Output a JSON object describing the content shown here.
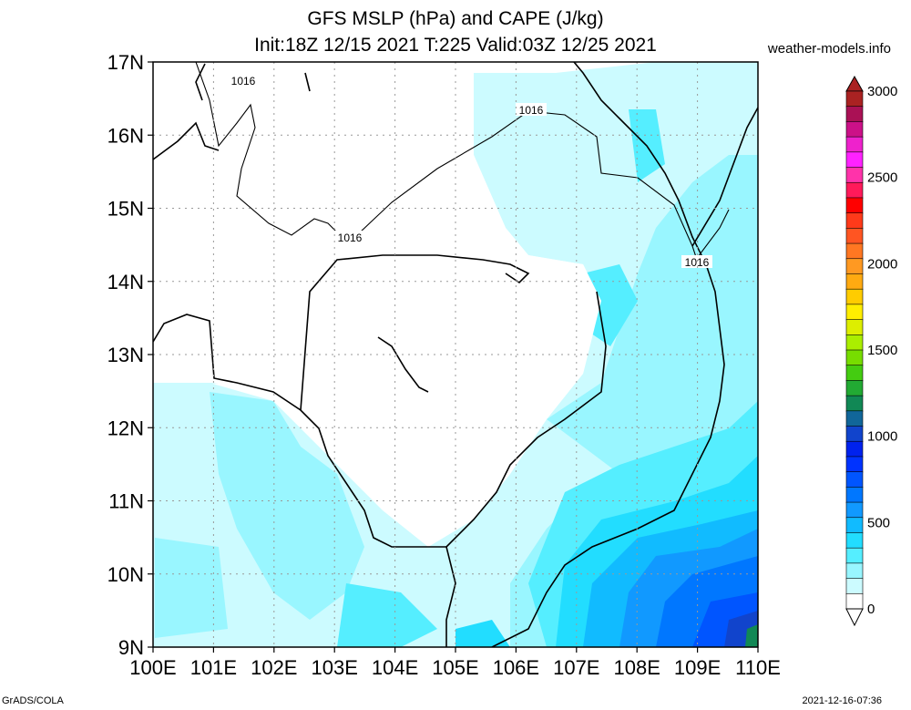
{
  "title_line1": "GFS MSLP (hPa) and CAPE (J/kg)",
  "title_line2": "Init:18Z 12/15 2021 T:225 Valid:03Z 12/25 2021",
  "credit": "weather-models.info",
  "footer_left": "GrADS/COLA",
  "footer_right": "2021-12-16-07:36",
  "map": {
    "lat_labels": [
      "17N",
      "16N",
      "15N",
      "14N",
      "13N",
      "12N",
      "11N",
      "10N",
      "9N"
    ],
    "lon_labels": [
      "100E",
      "101E",
      "102E",
      "103E",
      "104E",
      "105E",
      "106E",
      "107E",
      "108E",
      "109E",
      "110E"
    ],
    "isobar_label": "1016"
  },
  "colorbar": {
    "labels": [
      "3000",
      "2500",
      "2000",
      "1500",
      "1000",
      "500",
      "0"
    ],
    "colors": [
      "#aa2222",
      "#aa1155",
      "#cc1188",
      "#ee22cc",
      "#ff22ff",
      "#ff33aa",
      "#ff1a5a",
      "#ff0000",
      "#ff3a1a",
      "#ff5522",
      "#ff7722",
      "#ff9922",
      "#ffaa11",
      "#ffcc00",
      "#ffee00",
      "#ddee00",
      "#aaee00",
      "#77dd00",
      "#44cc11",
      "#22aa33",
      "#118855",
      "#116699",
      "#1144cc",
      "#0022ee",
      "#0033ff",
      "#0055ff",
      "#0077ff",
      "#1199ff",
      "#11bbff",
      "#22ddff",
      "#55eeff",
      "#99f6ff",
      "#ccfbff",
      "#ffffff"
    ]
  }
}
